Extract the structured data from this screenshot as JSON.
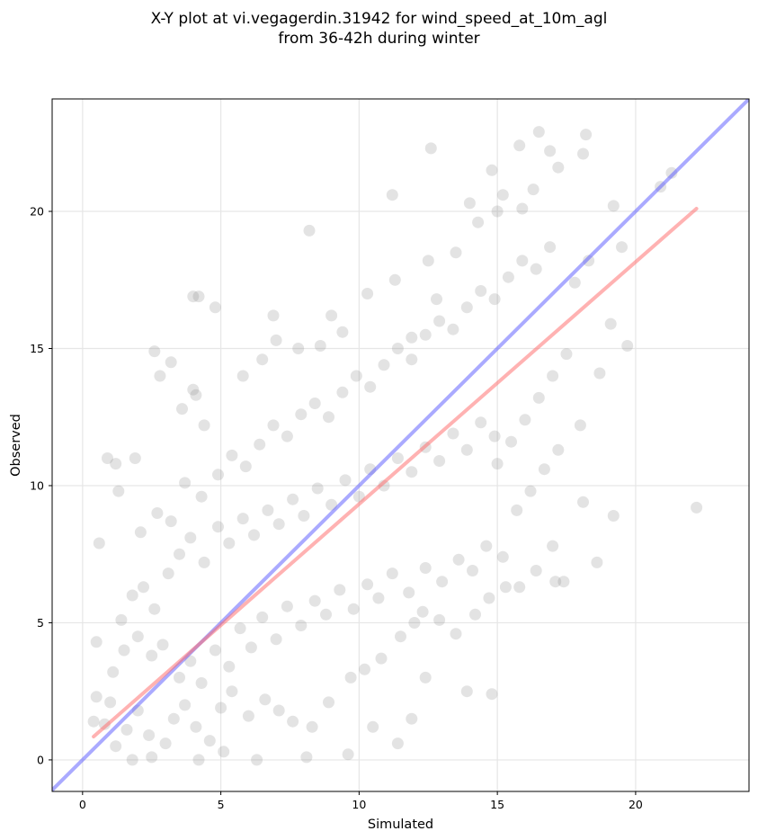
{
  "chart_data": {
    "type": "scatter",
    "title": [
      "X-Y plot at vi.vegagerdin.31942 for wind_speed_at_10m_agl",
      "from 36-42h during winter"
    ],
    "xlabel": "Simulated",
    "ylabel": "Observed",
    "xlim": [
      -1.1,
      24.1
    ],
    "ylim": [
      -1.15,
      24.1
    ],
    "xticks": [
      0,
      5,
      10,
      15,
      20
    ],
    "yticks": [
      0,
      5,
      10,
      15,
      20
    ],
    "grid": true,
    "colors": {
      "points": "#808080",
      "identity_line": "#5555ff",
      "fit_line": "#ff6666"
    },
    "lines": [
      {
        "kind": "identity",
        "x": [
          -1.1,
          24.1
        ],
        "y": [
          -1.1,
          24.1
        ]
      },
      {
        "kind": "fit",
        "x": [
          0.4,
          22.2
        ],
        "y": [
          0.85,
          20.1
        ]
      }
    ],
    "points_sample": [
      [
        0.5,
        4.3
      ],
      [
        0.6,
        7.9
      ],
      [
        0.9,
        11.0
      ],
      [
        1.2,
        10.8
      ],
      [
        1.3,
        9.8
      ],
      [
        1.9,
        11.0
      ],
      [
        2.6,
        14.9
      ],
      [
        2.8,
        14.0
      ],
      [
        3.2,
        14.5
      ],
      [
        3.6,
        12.8
      ],
      [
        4.0,
        13.5
      ],
      [
        4.0,
        16.9
      ],
      [
        4.2,
        16.9
      ],
      [
        4.8,
        16.5
      ],
      [
        4.1,
        13.3
      ],
      [
        4.4,
        12.2
      ],
      [
        5.8,
        14.0
      ],
      [
        6.5,
        14.6
      ],
      [
        6.9,
        16.2
      ],
      [
        7.0,
        15.3
      ],
      [
        7.8,
        15.0
      ],
      [
        8.6,
        15.1
      ],
      [
        8.2,
        19.3
      ],
      [
        9.0,
        16.2
      ],
      [
        9.4,
        15.6
      ],
      [
        10.3,
        17.0
      ],
      [
        11.2,
        20.6
      ],
      [
        12.6,
        22.3
      ],
      [
        11.3,
        17.5
      ],
      [
        11.9,
        15.4
      ],
      [
        12.5,
        18.2
      ],
      [
        12.8,
        16.8
      ],
      [
        13.5,
        18.5
      ],
      [
        14.0,
        20.3
      ],
      [
        14.3,
        19.6
      ],
      [
        14.8,
        21.5
      ],
      [
        15.0,
        20.0
      ],
      [
        15.2,
        20.6
      ],
      [
        15.9,
        20.1
      ],
      [
        16.3,
        20.8
      ],
      [
        16.5,
        22.9
      ],
      [
        16.9,
        22.2
      ],
      [
        17.2,
        21.6
      ],
      [
        15.8,
        22.4
      ],
      [
        18.1,
        22.1
      ],
      [
        18.2,
        22.8
      ],
      [
        19.2,
        20.2
      ],
      [
        20.9,
        20.9
      ],
      [
        21.3,
        21.4
      ],
      [
        17.8,
        17.4
      ],
      [
        18.3,
        18.2
      ],
      [
        19.5,
        18.7
      ],
      [
        19.7,
        15.1
      ],
      [
        19.1,
        15.9
      ],
      [
        18.7,
        14.1
      ],
      [
        18.0,
        12.2
      ],
      [
        18.1,
        9.4
      ],
      [
        19.2,
        8.9
      ],
      [
        18.6,
        7.2
      ],
      [
        22.2,
        9.2
      ],
      [
        17.0,
        7.8
      ],
      [
        17.1,
        6.5
      ],
      [
        17.4,
        6.5
      ],
      [
        16.4,
        6.9
      ],
      [
        15.3,
        6.3
      ],
      [
        14.8,
        2.4
      ],
      [
        13.9,
        2.5
      ],
      [
        12.4,
        3.0
      ],
      [
        11.9,
        1.5
      ],
      [
        11.4,
        0.6
      ],
      [
        10.5,
        1.2
      ],
      [
        9.6,
        0.2
      ],
      [
        8.1,
        0.1
      ],
      [
        6.3,
        0.0
      ],
      [
        5.1,
        0.3
      ],
      [
        4.2,
        0.0
      ],
      [
        2.5,
        0.1
      ],
      [
        1.8,
        0.0
      ],
      [
        1.2,
        0.5
      ],
      [
        0.8,
        1.3
      ],
      [
        0.4,
        1.4
      ],
      [
        0.5,
        2.3
      ],
      [
        1.0,
        2.1
      ],
      [
        1.6,
        1.1
      ],
      [
        2.0,
        1.8
      ],
      [
        2.4,
        0.9
      ],
      [
        3.0,
        0.6
      ],
      [
        3.3,
        1.5
      ],
      [
        3.7,
        2.0
      ],
      [
        4.1,
        1.2
      ],
      [
        4.6,
        0.7
      ],
      [
        5.0,
        1.9
      ],
      [
        5.4,
        2.5
      ],
      [
        6.0,
        1.6
      ],
      [
        6.6,
        2.2
      ],
      [
        7.1,
        1.8
      ],
      [
        7.6,
        1.4
      ],
      [
        8.3,
        1.2
      ],
      [
        8.9,
        2.1
      ],
      [
        9.7,
        3.0
      ],
      [
        10.2,
        3.3
      ],
      [
        10.8,
        3.7
      ],
      [
        11.5,
        4.5
      ],
      [
        12.0,
        5.0
      ],
      [
        12.3,
        5.4
      ],
      [
        12.9,
        5.1
      ],
      [
        13.5,
        4.6
      ],
      [
        14.2,
        5.3
      ],
      [
        14.7,
        5.9
      ],
      [
        15.8,
        6.3
      ],
      [
        1.1,
        3.2
      ],
      [
        1.5,
        4.0
      ],
      [
        2.0,
        4.5
      ],
      [
        2.5,
        3.8
      ],
      [
        2.9,
        4.2
      ],
      [
        3.5,
        3.0
      ],
      [
        3.9,
        3.6
      ],
      [
        4.3,
        2.8
      ],
      [
        4.8,
        4.0
      ],
      [
        5.3,
        3.4
      ],
      [
        5.7,
        4.8
      ],
      [
        6.1,
        4.1
      ],
      [
        6.5,
        5.2
      ],
      [
        7.0,
        4.4
      ],
      [
        7.4,
        5.6
      ],
      [
        7.9,
        4.9
      ],
      [
        8.4,
        5.8
      ],
      [
        8.8,
        5.3
      ],
      [
        9.3,
        6.2
      ],
      [
        9.8,
        5.5
      ],
      [
        10.3,
        6.4
      ],
      [
        10.7,
        5.9
      ],
      [
        11.2,
        6.8
      ],
      [
        11.8,
        6.1
      ],
      [
        12.4,
        7.0
      ],
      [
        13.0,
        6.5
      ],
      [
        13.6,
        7.3
      ],
      [
        14.1,
        6.9
      ],
      [
        14.6,
        7.8
      ],
      [
        15.2,
        7.4
      ],
      [
        1.4,
        5.1
      ],
      [
        1.8,
        6.0
      ],
      [
        2.2,
        6.3
      ],
      [
        2.6,
        5.5
      ],
      [
        3.1,
        6.8
      ],
      [
        3.5,
        7.5
      ],
      [
        3.9,
        8.1
      ],
      [
        4.4,
        7.2
      ],
      [
        4.9,
        8.5
      ],
      [
        5.3,
        7.9
      ],
      [
        5.8,
        8.8
      ],
      [
        6.2,
        8.2
      ],
      [
        6.7,
        9.1
      ],
      [
        7.1,
        8.6
      ],
      [
        7.6,
        9.5
      ],
      [
        8.0,
        8.9
      ],
      [
        8.5,
        9.9
      ],
      [
        9.0,
        9.3
      ],
      [
        9.5,
        10.2
      ],
      [
        10.0,
        9.6
      ],
      [
        10.4,
        10.6
      ],
      [
        10.9,
        10.0
      ],
      [
        11.4,
        11.0
      ],
      [
        11.9,
        10.5
      ],
      [
        12.4,
        11.4
      ],
      [
        12.9,
        10.9
      ],
      [
        13.4,
        11.9
      ],
      [
        13.9,
        11.3
      ],
      [
        14.4,
        12.3
      ],
      [
        14.9,
        11.8
      ],
      [
        2.1,
        8.3
      ],
      [
        2.7,
        9.0
      ],
      [
        3.2,
        8.7
      ],
      [
        3.7,
        10.1
      ],
      [
        4.3,
        9.6
      ],
      [
        4.9,
        10.4
      ],
      [
        5.4,
        11.1
      ],
      [
        5.9,
        10.7
      ],
      [
        6.4,
        11.5
      ],
      [
        6.9,
        12.2
      ],
      [
        7.4,
        11.8
      ],
      [
        7.9,
        12.6
      ],
      [
        8.4,
        13.0
      ],
      [
        8.9,
        12.5
      ],
      [
        9.4,
        13.4
      ],
      [
        9.9,
        14.0
      ],
      [
        10.4,
        13.6
      ],
      [
        10.9,
        14.4
      ],
      [
        11.4,
        15.0
      ],
      [
        11.9,
        14.6
      ],
      [
        12.4,
        15.5
      ],
      [
        12.9,
        16.0
      ],
      [
        13.4,
        15.7
      ],
      [
        13.9,
        16.5
      ],
      [
        14.4,
        17.1
      ],
      [
        14.9,
        16.8
      ],
      [
        15.4,
        17.6
      ],
      [
        15.9,
        18.2
      ],
      [
        16.4,
        17.9
      ],
      [
        16.9,
        18.7
      ],
      [
        15.0,
        10.8
      ],
      [
        15.5,
        11.6
      ],
      [
        16.0,
        12.4
      ],
      [
        16.5,
        13.2
      ],
      [
        17.0,
        14.0
      ],
      [
        17.5,
        14.8
      ],
      [
        16.2,
        9.8
      ],
      [
        16.7,
        10.6
      ],
      [
        17.2,
        11.3
      ],
      [
        15.7,
        9.1
      ]
    ]
  }
}
